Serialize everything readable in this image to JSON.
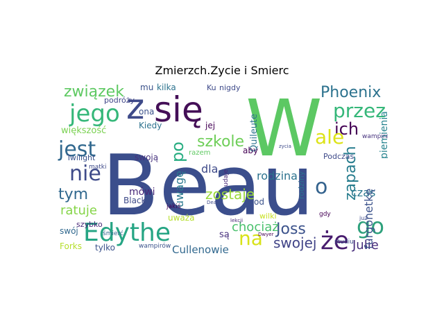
{
  "chart_data": {
    "type": "wordcloud",
    "title": "Zmierzch.Zycie i Smierc",
    "words": [
      {
        "text": "Beau",
        "color": "#3b4e8c"
      },
      {
        "text": "W",
        "color": "#5cc863"
      },
      {
        "text": "się",
        "color": "#440f57"
      },
      {
        "text": "Edythe",
        "color": "#26a584"
      },
      {
        "text": "z",
        "color": "#3e4a89"
      },
      {
        "text": "jego",
        "color": "#35b779"
      },
      {
        "text": "że",
        "color": "#481c6e"
      },
      {
        "text": "jest",
        "color": "#31688e"
      },
      {
        "text": "nie",
        "color": "#3e4a89"
      },
      {
        "text": "go",
        "color": "#2ea17c"
      },
      {
        "text": "na",
        "color": "#d8e219"
      },
      {
        "text": "związek",
        "color": "#5ec962"
      },
      {
        "text": "Phoenix",
        "color": "#2c728e"
      },
      {
        "text": "przez",
        "color": "#35b779"
      },
      {
        "text": "ich",
        "color": "#440154"
      },
      {
        "text": "ale",
        "color": "#dde318"
      },
      {
        "text": "szkole",
        "color": "#6ece58"
      },
      {
        "text": "o",
        "color": "#33628d"
      },
      {
        "text": "zapach",
        "color": "#287d8e"
      },
      {
        "text": "Joss",
        "color": "#3b528b"
      },
      {
        "text": "swojej",
        "color": "#414487"
      },
      {
        "text": "tym",
        "color": "#31688e"
      },
      {
        "text": "ratuje",
        "color": "#86d549"
      },
      {
        "text": "po",
        "color": "#27ad81"
      },
      {
        "text": "zostaje",
        "color": "#9bd93c"
      },
      {
        "text": "rodzina",
        "color": "#2c728e"
      },
      {
        "text": "chociaż",
        "color": "#4ac16d"
      },
      {
        "text": "uwagę",
        "color": "#2a788e"
      },
      {
        "text": "dla",
        "color": "#3e4a89"
      },
      {
        "text": "Julie",
        "color": "#472d7b"
      },
      {
        "text": "czas",
        "color": "#2a788e"
      },
      {
        "text": "furgonetkę",
        "color": "#3b528b"
      },
      {
        "text": "piemienia",
        "color": "#25838e"
      },
      {
        "text": "Cullenowie",
        "color": "#31688e"
      },
      {
        "text": "Quileute",
        "color": "#2c728e"
      },
      {
        "text": "są",
        "color": "#472f7d"
      },
      {
        "text": "większość",
        "color": "#7ad151"
      },
      {
        "text": "mu",
        "color": "#3b528b"
      },
      {
        "text": "kilka",
        "color": "#2c728e"
      },
      {
        "text": "Ku",
        "color": "#3e4a89"
      },
      {
        "text": "nigdy",
        "color": "#3e4a89"
      },
      {
        "text": "Kiedy",
        "color": "#2c728e"
      },
      {
        "text": "jej",
        "color": "#440154"
      },
      {
        "text": "ona",
        "color": "#3b528b"
      },
      {
        "text": "swoją",
        "color": "#46327e"
      },
      {
        "text": "mówi",
        "color": "#482878"
      },
      {
        "text": "Black",
        "color": "#3e4a89"
      },
      {
        "text": "uważa",
        "color": "#b5de2b"
      },
      {
        "text": "tylko",
        "color": "#3b528b"
      },
      {
        "text": "Forks",
        "color": "#b5de2b"
      },
      {
        "text": "swój",
        "color": "#31688e"
      },
      {
        "text": "szybko",
        "color": "#482878"
      },
      {
        "text": "Twilight",
        "color": "#3b528b"
      },
      {
        "text": "podróży",
        "color": "#404688"
      },
      {
        "text": "aby",
        "color": "#440154"
      },
      {
        "text": "Podczas",
        "color": "#3e4a89"
      },
      {
        "text": "rodziny",
        "color": "#2c728e"
      },
      {
        "text": "wampiramí",
        "color": "#46337e"
      },
      {
        "text": "śmierć",
        "color": "#31688e"
      },
      {
        "text": "od",
        "color": "#3b528b"
      },
      {
        "text": "wilki",
        "color": "#c8e020"
      },
      {
        "text": "studiu",
        "color": "#3e4a89"
      },
      {
        "text": "gdy",
        "color": "#440154"
      },
      {
        "text": "wampirów",
        "color": "#3b528b"
      },
      {
        "text": "matki",
        "color": "#3e4a89"
      },
      {
        "text": "jakiś",
        "color": "#440154"
      },
      {
        "text": "Dwyer",
        "color": "#440154"
      },
      {
        "text": "Death",
        "color": "#3e4a89"
      },
      {
        "text": "udaje",
        "color": "#482878"
      },
      {
        "text": "razem",
        "color": "#5ec962"
      },
      {
        "text": "już",
        "color": "#3e4a89"
      },
      {
        "text": "zycia",
        "color": "#3e4a89"
      },
      {
        "text": "lekcji",
        "color": "#482878"
      }
    ]
  }
}
